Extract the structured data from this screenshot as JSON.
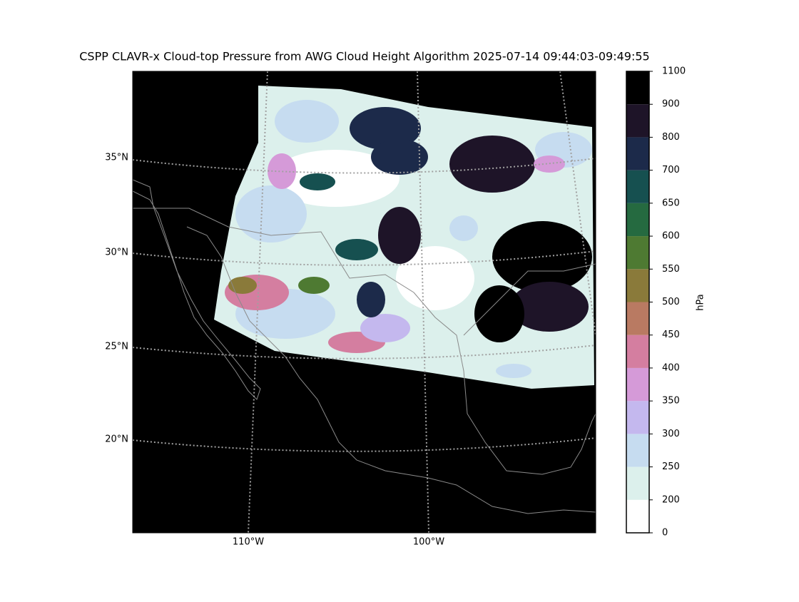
{
  "map": {
    "title": "CSPP CLAVR-x Cloud-top Pressure from AWG Cloud Height Algorithm 2025-07-14 09:44:03-09:49:55",
    "lat_labels": [
      "35°N",
      "30°N",
      "25°N",
      "20°N"
    ],
    "lon_labels": [
      "110°W",
      "100°W"
    ],
    "colorbar": {
      "label": "hPa",
      "boundaries": [
        0,
        200,
        250,
        300,
        350,
        400,
        450,
        500,
        550,
        600,
        650,
        700,
        800,
        900,
        1100
      ],
      "colors": [
        "#ffffff",
        "#dcf0ec",
        "#c6dcf0",
        "#c4b8ee",
        "#d59ad8",
        "#d47ea0",
        "#b97a62",
        "#8a7a3a",
        "#4e7a32",
        "#256a40",
        "#165050",
        "#1c2a4a",
        "#1e1428",
        "#000000"
      ]
    }
  }
}
